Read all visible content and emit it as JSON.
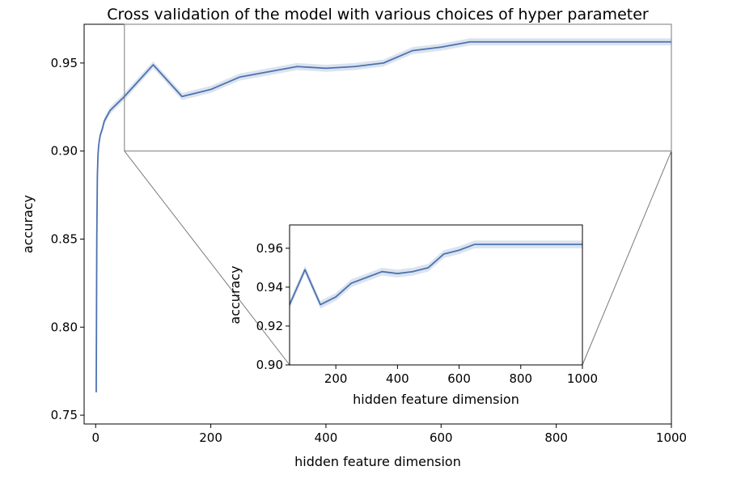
{
  "chart_data": [
    {
      "type": "line",
      "title": "Cross validation of the model with various choices of hyper parameter",
      "xlabel": "hidden feature dimension",
      "ylabel": "accuracy",
      "xlim": [
        -20,
        1000
      ],
      "ylim": [
        0.745,
        0.972
      ],
      "xticks": [
        "0",
        "200",
        "400",
        "600",
        "800",
        "1000"
      ],
      "yticks": [
        "0.75",
        "0.80",
        "0.85",
        "0.90",
        "0.95"
      ],
      "series": [
        {
          "x": [
            1,
            2,
            3,
            4,
            5,
            6,
            8,
            10,
            12,
            15,
            20,
            25,
            50,
            100,
            150,
            200,
            250,
            300,
            350,
            400,
            450,
            500,
            550,
            600,
            650,
            700,
            750,
            800,
            850,
            900,
            950,
            1000
          ],
          "y": [
            0.763,
            0.85,
            0.886,
            0.897,
            0.902,
            0.905,
            0.909,
            0.911,
            0.913,
            0.917,
            0.92,
            0.923,
            0.931,
            0.949,
            0.931,
            0.935,
            0.942,
            0.945,
            0.948,
            0.947,
            0.948,
            0.95,
            0.957,
            0.959,
            0.962,
            0.962,
            0.962,
            0.962,
            0.962,
            0.962,
            0.962,
            0.962
          ],
          "ci": [
            0.006,
            0.004,
            0.003,
            0.003,
            0.002,
            0.002,
            0.002,
            0.002,
            0.002,
            0.002,
            0.002,
            0.002,
            0.002,
            0.002,
            0.002,
            0.002,
            0.002,
            0.002,
            0.002,
            0.002,
            0.002,
            0.002,
            0.002,
            0.002,
            0.002,
            0.002,
            0.002,
            0.002,
            0.002,
            0.002,
            0.002,
            0.002
          ]
        }
      ]
    },
    {
      "type": "line",
      "title": "",
      "xlabel": "hidden feature dimension",
      "ylabel": "accuracy",
      "xlim": [
        50,
        1000
      ],
      "ylim": [
        0.9,
        0.972
      ],
      "xticks": [
        "200",
        "400",
        "600",
        "800",
        "1000"
      ],
      "yticks": [
        "0.90",
        "0.92",
        "0.94",
        "0.96"
      ],
      "inset_of": "main",
      "zoom_region": {
        "xlim": [
          50,
          1000
        ],
        "ylim": [
          0.9,
          0.972
        ]
      },
      "series": [
        {
          "x": [
            50,
            100,
            150,
            200,
            250,
            300,
            350,
            400,
            450,
            500,
            550,
            600,
            650,
            700,
            750,
            800,
            850,
            900,
            950,
            1000
          ],
          "y": [
            0.931,
            0.949,
            0.931,
            0.935,
            0.942,
            0.945,
            0.948,
            0.947,
            0.948,
            0.95,
            0.957,
            0.959,
            0.962,
            0.962,
            0.962,
            0.962,
            0.962,
            0.962,
            0.962,
            0.962
          ],
          "ci": [
            0.002,
            0.002,
            0.002,
            0.002,
            0.002,
            0.002,
            0.002,
            0.002,
            0.002,
            0.002,
            0.002,
            0.002,
            0.002,
            0.002,
            0.002,
            0.002,
            0.002,
            0.002,
            0.002,
            0.002
          ]
        }
      ]
    }
  ],
  "colors": {
    "line": "#4c72b0",
    "zoom_box": "#7a7a7a"
  }
}
